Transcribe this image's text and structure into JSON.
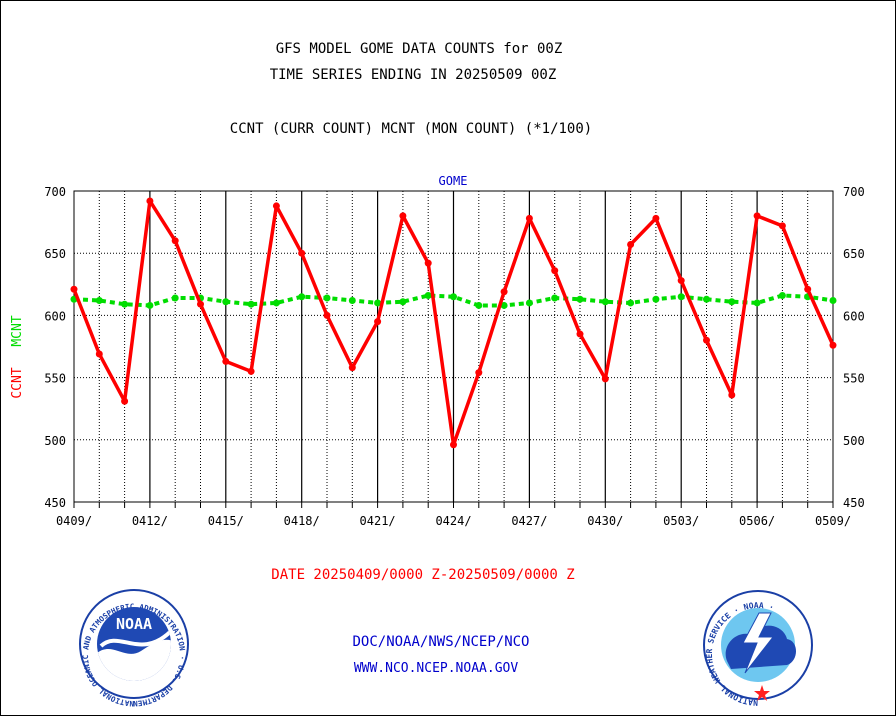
{
  "header": {
    "title_line1": "GFS MODEL GOME DATA COUNTS for 00Z",
    "title_line2": "TIME SERIES ENDING IN 20250509 00Z",
    "subtitle": "CCNT (CURR COUNT) MCNT (MON COUNT) (*1/100)"
  },
  "footer": {
    "date_range": "DATE 20250409/0000 Z-20250509/0000 Z",
    "org_line": "DOC/NOAA/NWS/NCEP/NCO",
    "url_line": "WWW.NCO.NCEP.NOAA.GOV",
    "noaa_logo_text": "NOAA",
    "noaa_logo_ring": "NATIONAL OCEANIC AND ATMOSPHERIC ADMINISTRATION · U.S. DEPARTMENT OF COMMERCE ·",
    "nws_logo_ring": "NATIONAL WEATHER SERVICE · NOAA ·"
  },
  "colors": {
    "ccnt": "#ff0000",
    "mcnt": "#00dd00",
    "title": "#0000cc",
    "text": "#000000"
  },
  "chart_data": {
    "type": "line",
    "title": "GOME",
    "ylabel_parts": [
      "CCNT",
      "MCNT"
    ],
    "ylim": [
      450,
      700
    ],
    "yticks": [
      450,
      500,
      550,
      600,
      650,
      700
    ],
    "x": [
      "0409",
      "0410",
      "0411",
      "0412",
      "0413",
      "0414",
      "0415",
      "0416",
      "0417",
      "0418",
      "0419",
      "0420",
      "0421",
      "0422",
      "0423",
      "0424",
      "0425",
      "0426",
      "0427",
      "0428",
      "0429",
      "0430",
      "0501",
      "0502",
      "0503",
      "0504",
      "0505",
      "0506",
      "0507",
      "0508",
      "0509"
    ],
    "xtick_labels": [
      "0409/",
      "0412/",
      "0415/",
      "0418/",
      "0421/",
      "0424/",
      "0427/",
      "0430/",
      "0503/",
      "0506/",
      "0509/"
    ],
    "grid": true,
    "series": [
      {
        "name": "CCNT",
        "color": "#ff0000",
        "style": "solid",
        "values": [
          621,
          569,
          531,
          692,
          660,
          609,
          563,
          555,
          688,
          650,
          600,
          558,
          595,
          680,
          642,
          496,
          554,
          619,
          678,
          636,
          585,
          549,
          657,
          678,
          628,
          580,
          536,
          680,
          672,
          621,
          576
        ]
      },
      {
        "name": "MCNT",
        "color": "#00dd00",
        "style": "dashed",
        "values": [
          613,
          612,
          609,
          608,
          614,
          614,
          611,
          609,
          610,
          615,
          614,
          612,
          610,
          611,
          616,
          615,
          608,
          608,
          610,
          614,
          613,
          611,
          610,
          613,
          615,
          613,
          611,
          610,
          616,
          615,
          612
        ]
      }
    ]
  }
}
